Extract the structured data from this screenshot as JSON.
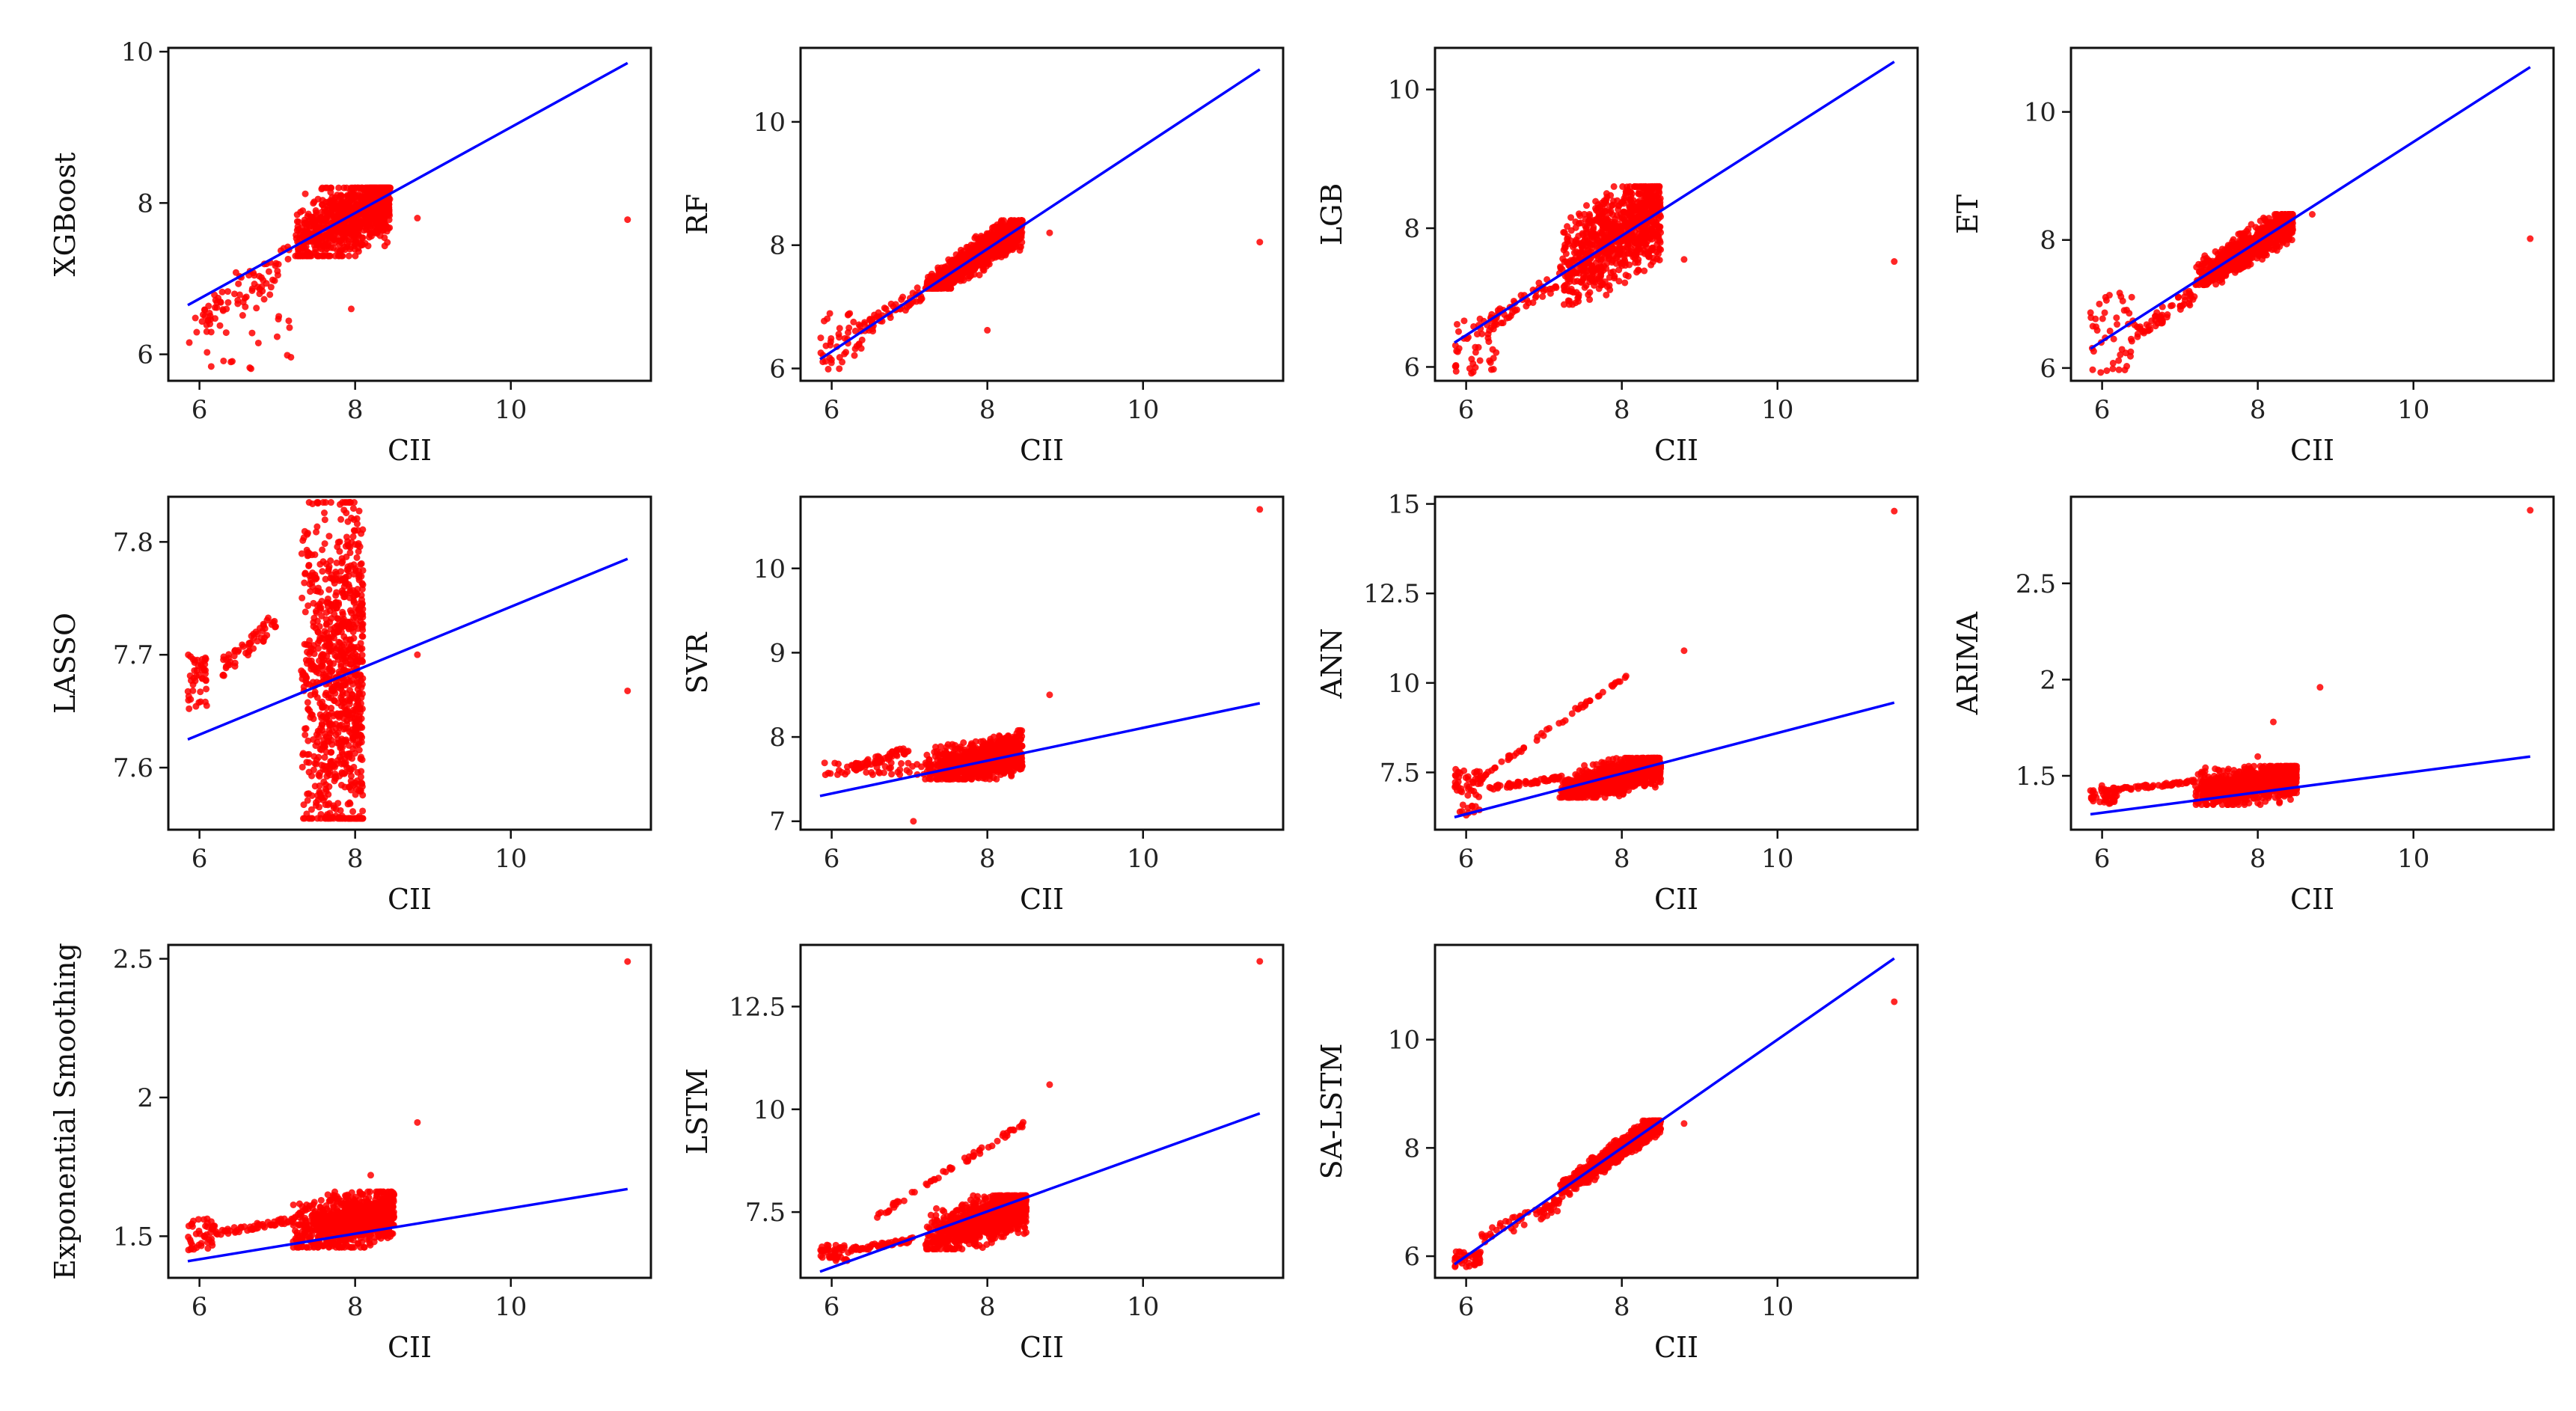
{
  "figure": {
    "x_axis_title": "CII",
    "scatter_color": "#ff0000",
    "fit_line_color": "#0000ff"
  },
  "chart_data": [
    {
      "type": "scatter",
      "model": "XGBoost",
      "xlabel": "CII",
      "ylabel": "XGBoost",
      "xlim": [
        5.6,
        11.8
      ],
      "ylim": [
        5.65,
        10.05
      ],
      "xticks": [
        6,
        8,
        10
      ],
      "yticks": [
        6,
        8,
        10
      ],
      "fit_line": [
        [
          5.85,
          6.65
        ],
        [
          11.5,
          9.85
        ]
      ],
      "points": {
        "low": [
          5.85,
          7.2,
          5.8,
          7.1
        ],
        "cluster": [
          7.2,
          8.45,
          7.3,
          8.2,
          7.75,
          0.22
        ],
        "mid": [
          6.0,
          7.2,
          6.3,
          7.5
        ],
        "outliers": [
          [
            11.5,
            7.78
          ],
          [
            8.8,
            7.8
          ],
          [
            7.95,
            6.6
          ]
        ]
      }
    },
    {
      "type": "scatter",
      "model": "RF",
      "xlabel": "CII",
      "ylabel": "RF",
      "xlim": [
        5.6,
        11.8
      ],
      "ylim": [
        5.8,
        11.2
      ],
      "xticks": [
        6,
        8,
        10
      ],
      "yticks": [
        6,
        8,
        10
      ],
      "fit_line": [
        [
          5.85,
          6.15
        ],
        [
          11.5,
          10.85
        ]
      ],
      "points": {
        "low": [
          5.85,
          6.4,
          5.9,
          6.9
        ],
        "cluster": [
          7.2,
          8.45,
          7.3,
          8.4,
          7.8,
          0.12
        ],
        "mid": [
          6.4,
          7.2,
          6.5,
          7.4
        ],
        "outliers": [
          [
            11.5,
            8.05
          ],
          [
            8.0,
            6.62
          ],
          [
            8.8,
            8.2
          ]
        ]
      }
    },
    {
      "type": "scatter",
      "model": "LGB",
      "xlabel": "CII",
      "ylabel": "LGB",
      "xlim": [
        5.6,
        11.8
      ],
      "ylim": [
        5.8,
        10.6
      ],
      "xticks": [
        6,
        8,
        10
      ],
      "yticks": [
        6,
        8,
        10
      ],
      "fit_line": [
        [
          5.85,
          6.35
        ],
        [
          11.5,
          10.4
        ]
      ],
      "points": {
        "low": [
          5.85,
          6.4,
          5.9,
          6.7
        ],
        "cluster": [
          7.2,
          8.5,
          6.9,
          8.6,
          7.8,
          0.3
        ],
        "mid": [
          6.3,
          7.2,
          6.5,
          7.4
        ],
        "outliers": [
          [
            11.5,
            7.52
          ],
          [
            8.8,
            7.55
          ]
        ]
      }
    },
    {
      "type": "scatter",
      "model": "ET",
      "xlabel": "CII",
      "ylabel": "ET",
      "xlim": [
        5.6,
        11.8
      ],
      "ylim": [
        5.8,
        11.0
      ],
      "xticks": [
        6,
        8,
        10
      ],
      "yticks": [
        6,
        8,
        10
      ],
      "fit_line": [
        [
          5.85,
          6.3
        ],
        [
          11.5,
          10.7
        ]
      ],
      "points": {
        "low": [
          5.85,
          6.4,
          5.9,
          7.2
        ],
        "cluster": [
          7.2,
          8.45,
          7.3,
          8.4,
          7.8,
          0.12
        ],
        "mid": [
          6.4,
          7.2,
          6.4,
          7.3
        ],
        "outliers": [
          [
            11.5,
            8.02
          ],
          [
            8.7,
            8.4
          ]
        ]
      }
    },
    {
      "type": "scatter",
      "model": "LASSO",
      "xlabel": "CII",
      "ylabel": "LASSO",
      "xlim": [
        5.6,
        11.8
      ],
      "ylim": [
        7.545,
        7.84
      ],
      "xticks": [
        6,
        8,
        10
      ],
      "yticks": [
        7.6,
        7.7,
        7.8
      ],
      "fit_line": [
        [
          5.85,
          7.625
        ],
        [
          11.5,
          7.785
        ]
      ],
      "points": {
        "low": [
          5.85,
          6.1,
          7.65,
          7.7
        ],
        "cluster": [
          7.3,
          8.1,
          7.555,
          7.835,
          7.68,
          0.04
        ],
        "mid": [
          6.3,
          7.0,
          7.68,
          7.74
        ],
        "outliers": [
          [
            11.5,
            7.668
          ],
          [
            8.8,
            7.7
          ]
        ]
      }
    },
    {
      "type": "scatter",
      "model": "SVR",
      "xlabel": "CII",
      "ylabel": "SVR",
      "xlim": [
        5.6,
        11.8
      ],
      "ylim": [
        6.9,
        10.85
      ],
      "xticks": [
        6,
        8,
        10
      ],
      "yticks": [
        7,
        8,
        9,
        10
      ],
      "fit_line": [
        [
          5.85,
          7.3
        ],
        [
          11.5,
          8.4
        ]
      ],
      "points": {
        "low": [
          5.85,
          7.2,
          7.55,
          7.7
        ],
        "cluster": [
          7.2,
          8.45,
          7.5,
          8.5,
          7.7,
          0.1
        ],
        "mid": [
          6.3,
          7.0,
          7.6,
          7.9
        ],
        "outliers": [
          [
            11.5,
            10.7
          ],
          [
            7.05,
            7.0
          ],
          [
            8.8,
            8.5
          ]
        ]
      }
    },
    {
      "type": "scatter",
      "model": "ANN",
      "xlabel": "CII",
      "ylabel": "ANN",
      "xlim": [
        5.6,
        11.8
      ],
      "ylim": [
        5.9,
        15.2
      ],
      "xticks": [
        6,
        8,
        10
      ],
      "yticks": [
        7.5,
        10.0,
        12.5,
        15.0
      ],
      "fit_line": [
        [
          5.85,
          6.25
        ],
        [
          11.5,
          9.45
        ]
      ],
      "points": {
        "low": [
          5.85,
          6.2,
          6.3,
          7.6
        ],
        "cluster": [
          7.2,
          8.5,
          6.8,
          7.9,
          7.3,
          0.2
        ],
        "mid": [
          6.3,
          7.2,
          7.0,
          7.4
        ],
        "upper_branch": [
          [
            5.9,
            6.9
          ],
          [
            8.1,
            10.3
          ]
        ],
        "outliers": [
          [
            11.5,
            14.8
          ],
          [
            8.8,
            10.9
          ]
        ]
      }
    },
    {
      "type": "scatter",
      "model": "ARIMA",
      "xlabel": "CII",
      "ylabel": "ARIMA",
      "xlim": [
        5.6,
        11.8
      ],
      "ylim": [
        1.22,
        2.95
      ],
      "xticks": [
        6,
        8,
        10
      ],
      "yticks": [
        1.5,
        2.0,
        2.5
      ],
      "fit_line": [
        [
          5.85,
          1.3
        ],
        [
          11.5,
          1.6
        ]
      ],
      "points": {
        "low": [
          5.85,
          6.2,
          1.35,
          1.45
        ],
        "cluster": [
          7.2,
          8.5,
          1.35,
          1.55,
          1.45,
          0.04
        ],
        "mid": [
          6.2,
          7.2,
          1.42,
          1.48
        ],
        "outliers": [
          [
            11.5,
            2.88
          ],
          [
            8.8,
            1.96
          ],
          [
            8.2,
            1.78
          ],
          [
            8.0,
            1.6
          ]
        ]
      }
    },
    {
      "type": "scatter",
      "model": "Exponential Smoothing",
      "xlabel": "CII",
      "ylabel": "Exponential Smoothing",
      "xlim": [
        5.6,
        11.8
      ],
      "ylim": [
        1.35,
        2.55
      ],
      "xticks": [
        6,
        8,
        10
      ],
      "yticks": [
        1.5,
        2.0,
        2.5
      ],
      "fit_line": [
        [
          5.85,
          1.41
        ],
        [
          11.5,
          1.67
        ]
      ],
      "points": {
        "low": [
          5.85,
          6.2,
          1.45,
          1.57
        ],
        "cluster": [
          7.2,
          8.5,
          1.46,
          1.66,
          1.55,
          0.04
        ],
        "mid": [
          6.2,
          7.2,
          1.5,
          1.57
        ],
        "outliers": [
          [
            11.5,
            2.49
          ],
          [
            8.8,
            1.91
          ],
          [
            8.2,
            1.72
          ]
        ]
      }
    },
    {
      "type": "scatter",
      "model": "LSTM",
      "xlabel": "CII",
      "ylabel": "LSTM",
      "xlim": [
        5.6,
        11.8
      ],
      "ylim": [
        5.9,
        14.0
      ],
      "xticks": [
        6,
        8,
        10
      ],
      "yticks": [
        7.5,
        10.0,
        12.5
      ],
      "fit_line": [
        [
          5.85,
          6.05
        ],
        [
          11.5,
          9.9
        ]
      ],
      "points": {
        "low": [
          5.85,
          6.2,
          6.3,
          6.7
        ],
        "cluster": [
          7.2,
          8.5,
          6.6,
          7.9,
          7.2,
          0.25
        ],
        "mid": [
          6.2,
          7.1,
          6.5,
          6.9
        ],
        "upper_branch": [
          [
            6.5,
            7.3
          ],
          [
            8.5,
            9.7
          ]
        ],
        "outliers": [
          [
            11.5,
            13.6
          ],
          [
            8.8,
            10.6
          ]
        ]
      }
    },
    {
      "type": "scatter",
      "model": "SA-LSTM",
      "xlabel": "CII",
      "ylabel": "SA-LSTM",
      "xlim": [
        5.6,
        11.8
      ],
      "ylim": [
        5.6,
        11.75
      ],
      "xticks": [
        6,
        8,
        10
      ],
      "yticks": [
        6,
        8,
        10
      ],
      "fit_line": [
        [
          5.85,
          5.85
        ],
        [
          11.5,
          11.5
        ]
      ],
      "points": {
        "low": [
          5.85,
          6.2,
          5.8,
          6.1
        ],
        "cluster": [
          7.2,
          8.5,
          7.1,
          8.5,
          7.8,
          0.08
        ],
        "mid": [
          6.2,
          7.2,
          6.2,
          7.1
        ],
        "outliers": [
          [
            11.5,
            10.7
          ],
          [
            8.8,
            8.45
          ]
        ]
      }
    }
  ]
}
